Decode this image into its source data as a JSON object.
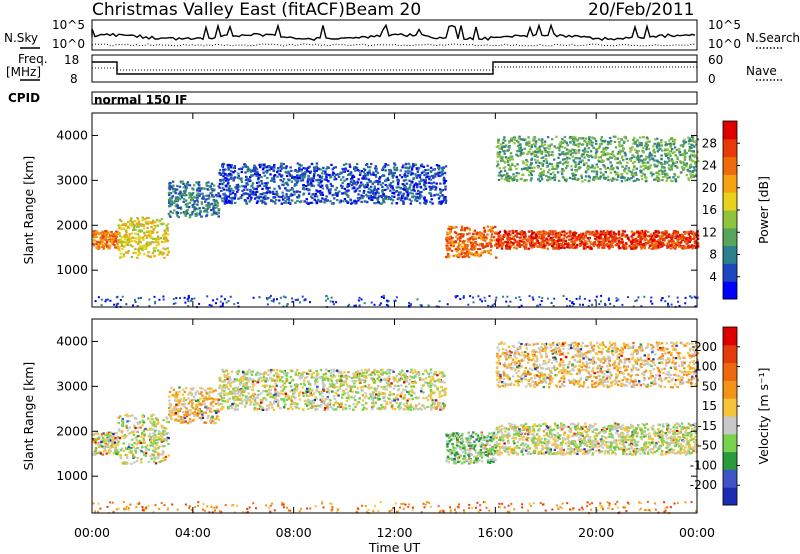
{
  "header": {
    "station": "Christmas Valley East (fitACF)",
    "beam": "Beam 20",
    "date": "20/Feb/2011"
  },
  "strip_panels": {
    "nsky_label": "N.Sky",
    "nsearch_label": "N.Search",
    "freq_label_line1": "Freq.",
    "freq_label_line2": "[MHz]",
    "nave_label": "Nave",
    "cpid_label": "CPID",
    "cpid_value": "normal 150 IF",
    "noise_ticks": [
      "10^5",
      "10^0"
    ],
    "freq_ticks": [
      "18",
      "8"
    ],
    "nave_ticks": [
      "60",
      "0"
    ]
  },
  "chart_data": [
    {
      "type": "heatmap",
      "name": "power",
      "ylabel": "Slant Range [km]",
      "xlabel": "",
      "x_ticks": [
        "00:00",
        "04:00",
        "08:00",
        "12:00",
        "16:00",
        "20:00",
        "00:00"
      ],
      "y_ticks": [
        "1000",
        "2000",
        "3000",
        "4000"
      ],
      "xlim": [
        0,
        24
      ],
      "ylim": [
        180,
        4500
      ],
      "colorbar": {
        "label": "Power [dB]",
        "ticks": [
          "4",
          "8",
          "12",
          "16",
          "20",
          "24",
          "28"
        ],
        "colors": [
          "#0000ff",
          "#1e46be",
          "#2c7f8c",
          "#58a45a",
          "#8fc33c",
          "#e8d31a",
          "#f5a30e",
          "#ef6a0a",
          "#e83a08",
          "#dd0000"
        ]
      },
      "bands": [
        {
          "t0": 0.0,
          "t1": 1.0,
          "r0": 1500,
          "r1": 1900,
          "level": 7
        },
        {
          "t0": 1.0,
          "t1": 3.0,
          "r0": 1300,
          "r1": 2200,
          "level": 5
        },
        {
          "t0": 3.0,
          "t1": 5.0,
          "r0": 2200,
          "r1": 3000,
          "level": 2
        },
        {
          "t0": 5.0,
          "t1": 14.0,
          "r0": 2500,
          "r1": 3400,
          "level": 1
        },
        {
          "t0": 14.0,
          "t1": 16.0,
          "r0": 1300,
          "r1": 2000,
          "level": 7
        },
        {
          "t0": 16.0,
          "t1": 24.0,
          "r0": 1500,
          "r1": 1900,
          "level": 8
        },
        {
          "t0": 16.0,
          "t1": 24.0,
          "r0": 3000,
          "r1": 4000,
          "level": 3
        }
      ]
    },
    {
      "type": "heatmap",
      "name": "velocity",
      "ylabel": "Slant Range [km]",
      "xlabel": "Time UT",
      "x_ticks": [
        "00:00",
        "04:00",
        "08:00",
        "12:00",
        "16:00",
        "20:00",
        "00:00"
      ],
      "y_ticks": [
        "1000",
        "2000",
        "3000",
        "4000"
      ],
      "xlim": [
        0,
        24
      ],
      "ylim": [
        180,
        4500
      ],
      "colorbar": {
        "label": "Velocity [m s⁻¹]",
        "ticks": [
          "200",
          "100",
          "50",
          "15",
          "-15",
          "-50",
          "-100",
          "-200"
        ],
        "colors": [
          "#1a2bb5",
          "#3d55c6",
          "#2a9a3a",
          "#79d24d",
          "#c8c8c8",
          "#f5c53a",
          "#f39416",
          "#ee6810",
          "#e33b0a",
          "#dd0000"
        ]
      },
      "bands": [
        {
          "t0": 0.0,
          "t1": 1.0,
          "r0": 1500,
          "r1": 2000,
          "level": 4
        },
        {
          "t0": 1.0,
          "t1": 3.0,
          "r0": 1300,
          "r1": 2400,
          "level": 4
        },
        {
          "t0": 3.0,
          "t1": 5.0,
          "r0": 2200,
          "r1": 3000,
          "level": 5
        },
        {
          "t0": 5.0,
          "t1": 14.0,
          "r0": 2500,
          "r1": 3400,
          "level": 4
        },
        {
          "t0": 14.0,
          "t1": 16.0,
          "r0": 1300,
          "r1": 2000,
          "level": 3
        },
        {
          "t0": 16.0,
          "t1": 24.0,
          "r0": 1500,
          "r1": 2200,
          "level": 4
        },
        {
          "t0": 16.0,
          "t1": 24.0,
          "r0": 3000,
          "r1": 4000,
          "level": 5
        }
      ]
    }
  ]
}
